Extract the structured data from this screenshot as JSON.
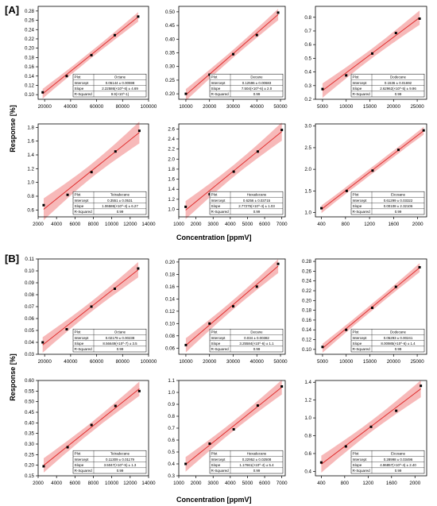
{
  "panels": [
    {
      "label": "[A]",
      "ylabel": "Response [%]",
      "xlabel": "Concentration [ppmV]"
    },
    {
      "label": "[B]",
      "ylabel": "Response [%]",
      "xlabel": "Concentration [ppmV]"
    }
  ],
  "legend_labels": {
    "plot": "Plot",
    "intercept": "Intercept",
    "slope": "Slope",
    "r2": "R-Squared"
  },
  "colors": {
    "band": "#f08080",
    "line": "#e03030",
    "point": "#000000",
    "axis": "#000000"
  },
  "chart_data": [
    {
      "type": "line",
      "series": [
        {
          "name": "Octane",
          "x": [
            18500,
            37000,
            56000,
            74000,
            92000
          ],
          "y": [
            0.105,
            0.14,
            0.185,
            0.228,
            0.268
          ]
        }
      ],
      "xlim": [
        15000,
        100000
      ],
      "ylim": [
        0.09,
        0.29
      ],
      "xticks": [
        20000,
        40000,
        60000,
        80000,
        100000
      ],
      "xtick_labels": [
        "20000",
        "40000",
        "60000",
        "80000",
        "100000"
      ],
      "yticks": [
        0.1,
        0.12,
        0.14,
        0.16,
        0.18,
        0.2,
        0.22,
        0.24,
        0.26,
        0.28
      ],
      "ytick_labels": [
        "0.10",
        "0.12",
        "0.14",
        "0.16",
        "0.18",
        "0.20",
        "0.22",
        "0.24",
        "0.26",
        "0.28"
      ],
      "fit": {
        "plot": "Octane",
        "intercept": "0.06144 ± 0.00598",
        "slope": "2.22586(×10^-6) ± 4.69",
        "r2": "9.9(×10^-1)"
      }
    },
    {
      "type": "line",
      "series": [
        {
          "name": "Decane",
          "x": [
            10000,
            20000,
            30000,
            40000,
            49000
          ],
          "y": [
            0.2,
            0.27,
            0.345,
            0.415,
            0.497
          ]
        }
      ],
      "xlim": [
        7000,
        52000
      ],
      "ylim": [
        0.18,
        0.52
      ],
      "xticks": [
        10000,
        20000,
        30000,
        40000,
        50000
      ],
      "xtick_labels": [
        "10000",
        "20000",
        "30000",
        "40000",
        "50000"
      ],
      "yticks": [
        0.2,
        0.25,
        0.3,
        0.35,
        0.4,
        0.45,
        0.5
      ],
      "ytick_labels": [
        "0.20",
        "0.25",
        "0.30",
        "0.35",
        "0.40",
        "0.45",
        "0.50"
      ],
      "fit": {
        "plot": "Decane",
        "intercept": "0.12596 ± 0.00683",
        "slope": "7.504(×10^-6) ± 2.0",
        "r2": "0.99"
      }
    },
    {
      "type": "line",
      "series": [
        {
          "name": "Dodecane",
          "x": [
            5000,
            10000,
            15500,
            20500,
            25500
          ],
          "y": [
            0.275,
            0.375,
            0.535,
            0.685,
            0.79
          ]
        }
      ],
      "xlim": [
        3500,
        27000
      ],
      "ylim": [
        0.2,
        0.88
      ],
      "xticks": [
        5000,
        10000,
        15000,
        20000,
        25000
      ],
      "xtick_labels": [
        "5000",
        "10000",
        "15000",
        "20000",
        "25000"
      ],
      "yticks": [
        0.2,
        0.3,
        0.4,
        0.5,
        0.6,
        0.7,
        0.8
      ],
      "ytick_labels": [
        "0.2",
        "0.3",
        "0.4",
        "0.5",
        "0.6",
        "0.7",
        "0.8"
      ],
      "fit": {
        "plot": "Dodecane",
        "intercept": "0.1536 ± 0.01692",
        "slope": "2.62962(×10^-5) ± 9.96",
        "r2": "0.99"
      }
    },
    {
      "type": "line",
      "series": [
        {
          "name": "Tetradecane",
          "x": [
            2600,
            5200,
            7800,
            10400,
            13000
          ],
          "y": [
            0.67,
            0.82,
            1.15,
            1.45,
            1.75
          ]
        }
      ],
      "xlim": [
        2000,
        14000
      ],
      "ylim": [
        0.5,
        1.85
      ],
      "xticks": [
        2000,
        4000,
        6000,
        8000,
        10000,
        12000,
        14000
      ],
      "xtick_labels": [
        "2000",
        "4000",
        "6000",
        "8000",
        "10000",
        "12000",
        "14000"
      ],
      "yticks": [
        0.6,
        0.8,
        1.0,
        1.2,
        1.4,
        1.6,
        1.8
      ],
      "ytick_labels": [
        "0.6",
        "0.8",
        "1.0",
        "1.2",
        "1.4",
        "1.6",
        "1.8"
      ],
      "fit": {
        "plot": "Tetradecane",
        "intercept": "0.3551 ± 0.0531",
        "slope": "1.06586(×10^-4) ± 6.27",
        "r2": "0.99"
      }
    },
    {
      "type": "line",
      "series": [
        {
          "name": "Hexadecane",
          "x": [
            1400,
            2800,
            4200,
            5600,
            7000
          ],
          "y": [
            1.05,
            1.3,
            1.75,
            2.15,
            2.58
          ]
        }
      ],
      "xlim": [
        1000,
        7200
      ],
      "ylim": [
        0.85,
        2.7
      ],
      "xticks": [
        1000,
        2000,
        3000,
        4000,
        5000,
        6000,
        7000
      ],
      "xtick_labels": [
        "1000",
        "2000",
        "3000",
        "4000",
        "5000",
        "6000",
        "7000"
      ],
      "yticks": [
        1.0,
        1.2,
        1.4,
        1.6,
        1.8,
        2.0,
        2.2,
        2.4,
        2.6
      ],
      "ytick_labels": [
        "1.0",
        "1.2",
        "1.4",
        "1.6",
        "1.8",
        "2.0",
        "2.2",
        "2.4",
        "2.6"
      ],
      "fit": {
        "plot": "Hexadecane",
        "intercept": "0.6256 ± 0.03715",
        "slope": "2.77275(×10^-4) ± 1.03",
        "r2": "0.99"
      }
    },
    {
      "type": "line",
      "series": [
        {
          "name": "Eicosane",
          "x": [
            400,
            820,
            1250,
            1680,
            2100
          ],
          "y": [
            1.1,
            1.5,
            1.97,
            2.45,
            2.9
          ]
        }
      ],
      "xlim": [
        300,
        2150
      ],
      "ylim": [
        0.9,
        3.05
      ],
      "xticks": [
        400,
        800,
        1200,
        1600,
        2000
      ],
      "xtick_labels": [
        "400",
        "800",
        "1200",
        "1600",
        "2000"
      ],
      "yticks": [
        1.0,
        1.5,
        2.0,
        2.5,
        3.0
      ],
      "ytick_labels": [
        "1.0",
        "1.5",
        "2.0",
        "2.5",
        "3.0"
      ],
      "fit": {
        "plot": "Eicosane",
        "intercept": "0.61299 ± 0.03322",
        "slope": "0.00108 ± 2.32106",
        "r2": "0.99"
      }
    },
    {
      "type": "line",
      "series": [
        {
          "name": "Octane",
          "x": [
            18500,
            37000,
            56000,
            74000,
            92000
          ],
          "y": [
            0.04,
            0.051,
            0.07,
            0.085,
            0.102
          ]
        }
      ],
      "xlim": [
        15000,
        100000
      ],
      "ylim": [
        0.03,
        0.11
      ],
      "xticks": [
        20000,
        40000,
        60000,
        80000,
        100000
      ],
      "xtick_labels": [
        "20000",
        "40000",
        "60000",
        "80000",
        "100000"
      ],
      "yticks": [
        0.03,
        0.04,
        0.05,
        0.06,
        0.07,
        0.08,
        0.09,
        0.1,
        0.11
      ],
      "ytick_labels": [
        "0.03",
        "0.04",
        "0.05",
        "0.06",
        "0.07",
        "0.08",
        "0.09",
        "0.10",
        "0.11"
      ],
      "fit": {
        "plot": "Octane",
        "intercept": "0.02179 ± 0.00238",
        "slope": "8.56649(×10^-7) ± 3.5",
        "r2": "0.99"
      }
    },
    {
      "type": "line",
      "series": [
        {
          "name": "Decane",
          "x": [
            10000,
            20000,
            30000,
            40000,
            49000
          ],
          "y": [
            0.065,
            0.1,
            0.128,
            0.16,
            0.197
          ]
        }
      ],
      "xlim": [
        7000,
        52000
      ],
      "ylim": [
        0.05,
        0.205
      ],
      "xticks": [
        10000,
        20000,
        30000,
        40000,
        50000
      ],
      "xtick_labels": [
        "10000",
        "20000",
        "30000",
        "40000",
        "50000"
      ],
      "yticks": [
        0.06,
        0.08,
        0.1,
        0.12,
        0.14,
        0.16,
        0.18,
        0.2
      ],
      "ytick_labels": [
        "0.06",
        "0.08",
        "0.10",
        "0.12",
        "0.14",
        "0.16",
        "0.18",
        "0.20"
      ],
      "fit": {
        "plot": "Decane",
        "intercept": "0.034 ± 0.00382",
        "slope": "3.25584(×10^-6) ± 1.1",
        "r2": "0.99"
      }
    },
    {
      "type": "line",
      "series": [
        {
          "name": "Dodecane",
          "x": [
            5000,
            10000,
            15500,
            20500,
            25500
          ],
          "y": [
            0.105,
            0.14,
            0.185,
            0.228,
            0.268
          ]
        }
      ],
      "xlim": [
        3500,
        27000
      ],
      "ylim": [
        0.09,
        0.285
      ],
      "xticks": [
        5000,
        10000,
        15000,
        20000,
        25000
      ],
      "xtick_labels": [
        "5000",
        "10000",
        "15000",
        "20000",
        "25000"
      ],
      "yticks": [
        0.1,
        0.12,
        0.14,
        0.16,
        0.18,
        0.2,
        0.22,
        0.24,
        0.26,
        0.28
      ],
      "ytick_labels": [
        "0.10",
        "0.12",
        "0.14",
        "0.16",
        "0.18",
        "0.20",
        "0.22",
        "0.24",
        "0.26",
        "0.28"
      ],
      "fit": {
        "plot": "Dodecane",
        "intercept": "0.05293 ± 0.00241",
        "slope": "8.00985(×10^-6) ± 1.4",
        "r2": "0.99"
      }
    },
    {
      "type": "line",
      "series": [
        {
          "name": "Tetradecane",
          "x": [
            2600,
            5200,
            7800,
            10400,
            13000
          ],
          "y": [
            0.195,
            0.285,
            0.39,
            0.48,
            0.55
          ]
        }
      ],
      "xlim": [
        2000,
        14000
      ],
      "ylim": [
        0.15,
        0.6
      ],
      "xticks": [
        2000,
        4000,
        6000,
        8000,
        10000,
        12000,
        14000
      ],
      "xtick_labels": [
        "2000",
        "4000",
        "6000",
        "8000",
        "10000",
        "12000",
        "14000"
      ],
      "yticks": [
        0.15,
        0.2,
        0.25,
        0.3,
        0.35,
        0.4,
        0.45,
        0.5,
        0.55,
        0.6
      ],
      "ytick_labels": [
        "0.15",
        "0.20",
        "0.25",
        "0.30",
        "0.35",
        "0.40",
        "0.45",
        "0.50",
        "0.55",
        "0.60"
      ],
      "fit": {
        "plot": "Tetradecane",
        "intercept": "0.11309 ± 0.01179",
        "slope": "3.5047(×10^-5) ± 1.3",
        "r2": "0.99"
      }
    },
    {
      "type": "line",
      "series": [
        {
          "name": "Hexadecane",
          "x": [
            1400,
            2800,
            4200,
            5600,
            7000
          ],
          "y": [
            0.4,
            0.57,
            0.69,
            0.89,
            1.05
          ]
        }
      ],
      "xlim": [
        1000,
        7200
      ],
      "ylim": [
        0.3,
        1.1
      ],
      "xticks": [
        1000,
        2000,
        3000,
        4000,
        5000,
        6000,
        7000
      ],
      "xtick_labels": [
        "1000",
        "2000",
        "3000",
        "4000",
        "5000",
        "6000",
        "7000"
      ],
      "yticks": [
        0.3,
        0.4,
        0.5,
        0.6,
        0.7,
        0.8,
        0.9,
        1.0,
        1.1
      ],
      "ytick_labels": [
        "0.3",
        "0.4",
        "0.5",
        "0.6",
        "0.7",
        "0.8",
        "0.9",
        "1.0",
        "1.1"
      ],
      "fit": {
        "plot": "Hexadecane",
        "intercept": "0.22952 ± 0.02508",
        "slope": "1.17661(×10^-4) ± 5.4",
        "r2": "0.99"
      }
    },
    {
      "type": "line",
      "series": [
        {
          "name": "Eicosane",
          "x": [
            400,
            820,
            1250,
            1680,
            2100
          ],
          "y": [
            0.5,
            0.68,
            0.9,
            1.08,
            1.36
          ]
        }
      ],
      "xlim": [
        300,
        2200
      ],
      "ylim": [
        0.35,
        1.42
      ],
      "xticks": [
        400,
        800,
        1200,
        1600,
        2000
      ],
      "xtick_labels": [
        "400",
        "800",
        "1200",
        "1600",
        "2000"
      ],
      "yticks": [
        0.4,
        0.6,
        0.8,
        1.0,
        1.2,
        1.4
      ],
      "ytick_labels": [
        "0.4",
        "0.6",
        "0.8",
        "1.0",
        "1.2",
        "1.4"
      ],
      "fit": {
        "plot": "Eicosane",
        "intercept": "0.28998 ± 0.03496",
        "slope": "4.96857(×10^-4) ± 2.40",
        "r2": "0.99"
      }
    }
  ]
}
